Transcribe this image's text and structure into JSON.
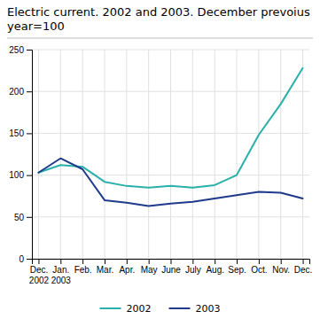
{
  "chart_data": {
    "type": "line",
    "title": "Electric current. 2002 and 2003. December prevoius",
    "subtitle": "year=100",
    "categories": [
      "Dec.\n2002",
      "Jan.\n2003",
      "Feb.",
      "Mar.",
      "Apr.",
      "May",
      "June",
      "July",
      "Aug.",
      "Sep.",
      "Oct.",
      "Nov.",
      "Dec."
    ],
    "series": [
      {
        "name": "2002",
        "color": "#2ab0aa",
        "values": [
          103,
          112,
          110,
          92,
          87,
          85,
          87,
          85,
          88,
          100,
          148,
          185,
          228
        ]
      },
      {
        "name": "2003",
        "color": "#1f3a8a",
        "values": [
          103,
          120,
          107,
          70,
          67,
          63,
          66,
          68,
          72,
          76,
          80,
          79,
          72
        ]
      }
    ],
    "ylim": [
      0,
      250
    ],
    "yticks": [
      0,
      50,
      100,
      150,
      200,
      250
    ],
    "grid": true,
    "legend": "bottom"
  }
}
